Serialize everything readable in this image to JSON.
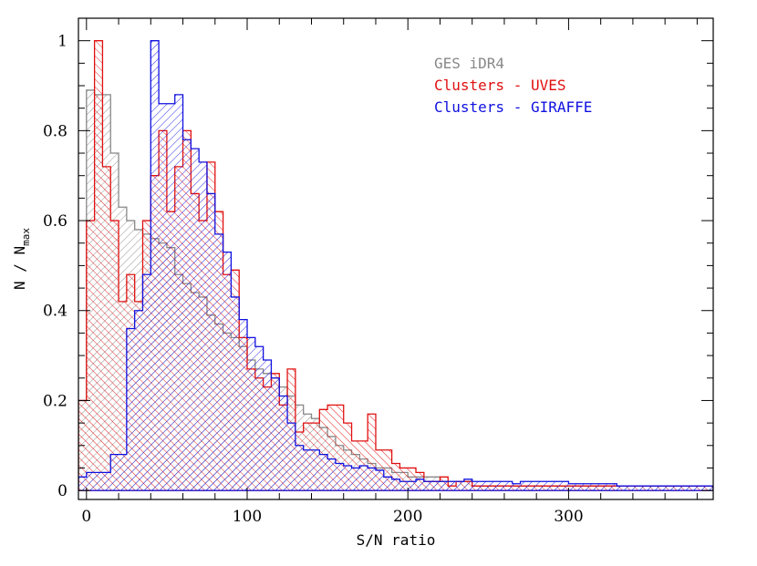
{
  "chart_data": {
    "type": "histogram",
    "xlabel": "S/N ratio",
    "ylabel_main": "N / N",
    "ylabel_sub": "max",
    "xlim": [
      -5,
      390
    ],
    "ylim": [
      -0.02,
      1.05
    ],
    "x_ticks": [
      0,
      100,
      200,
      300
    ],
    "y_ticks": [
      0,
      0.2,
      0.4,
      0.6,
      0.8,
      1
    ],
    "y_tick_labels": [
      "0",
      "0.2",
      "0.4",
      "0.6",
      "0.8",
      "1"
    ],
    "bin_edges_start": -5,
    "bin_width": 5,
    "legend_position": "top-right",
    "series": [
      {
        "name": "GES iDR4",
        "color": "#888888",
        "hatch": "single",
        "values": [
          0.2,
          0.89,
          0.88,
          0.88,
          0.75,
          0.63,
          0.6,
          0.58,
          0.57,
          0.56,
          0.55,
          0.54,
          0.48,
          0.46,
          0.44,
          0.43,
          0.39,
          0.37,
          0.35,
          0.34,
          0.32,
          0.29,
          0.27,
          0.26,
          0.25,
          0.23,
          0.21,
          0.19,
          0.17,
          0.16,
          0.14,
          0.12,
          0.1,
          0.09,
          0.08,
          0.07,
          0.06,
          0.05,
          0.05,
          0.04,
          0.04,
          0.03,
          0.03,
          0.03,
          0.03,
          0.02,
          0.02,
          0.02,
          0.02,
          0.01,
          0.01,
          0.01,
          0.01,
          0.01,
          0.01,
          0.01,
          0.01,
          0.01,
          0.01,
          0.01,
          0.01,
          0.01,
          0.01,
          0.01,
          0.01,
          0.01,
          0.01,
          0.01,
          0.01,
          0.01,
          0.01,
          0.01,
          0.01,
          0.01,
          0.01,
          0.01,
          0.01,
          0.01,
          0.01
        ]
      },
      {
        "name": "Clusters - UVES",
        "color": "#e01010",
        "hatch": "single",
        "values": [
          0.2,
          0.6,
          1.0,
          0.72,
          0.6,
          0.42,
          0.48,
          0.42,
          0.6,
          0.7,
          0.8,
          0.62,
          0.72,
          0.8,
          0.66,
          0.6,
          0.73,
          0.62,
          0.48,
          0.49,
          0.34,
          0.27,
          0.25,
          0.23,
          0.26,
          0.19,
          0.27,
          0.13,
          0.15,
          0.15,
          0.18,
          0.19,
          0.19,
          0.15,
          0.11,
          0.11,
          0.17,
          0.09,
          0.09,
          0.06,
          0.05,
          0.05,
          0.04,
          0.02,
          0.02,
          0.03,
          0.01,
          0.02,
          0.02,
          0.01,
          0.01,
          0.01,
          0.01,
          0.01,
          0.01,
          0.01,
          0.01,
          0.01,
          0.01,
          0.01,
          0.01,
          0.01,
          0.01,
          0.01,
          0.01,
          0.01,
          0.01,
          0.01,
          0.01,
          0.01,
          0.01,
          0.01,
          0.01,
          0.01,
          0.01,
          0.01,
          0.01,
          0.01,
          0.01
        ]
      },
      {
        "name": "Clusters - GIRAFFE",
        "color": "#1010e0",
        "hatch": "single",
        "values": [
          0.03,
          0.04,
          0.04,
          0.04,
          0.08,
          0.08,
          0.36,
          0.4,
          0.48,
          1.0,
          0.86,
          0.86,
          0.88,
          0.78,
          0.76,
          0.73,
          0.66,
          0.57,
          0.53,
          0.43,
          0.38,
          0.34,
          0.32,
          0.29,
          0.25,
          0.21,
          0.15,
          0.1,
          0.09,
          0.09,
          0.08,
          0.07,
          0.06,
          0.055,
          0.05,
          0.055,
          0.05,
          0.045,
          0.03,
          0.025,
          0.02,
          0.02,
          0.025,
          0.02,
          0.02,
          0.02,
          0.02,
          0.02,
          0.025,
          0.02,
          0.02,
          0.02,
          0.02,
          0.02,
          0.015,
          0.02,
          0.02,
          0.02,
          0.02,
          0.02,
          0.02,
          0.015,
          0.015,
          0.015,
          0.015,
          0.015,
          0.015,
          0.01,
          0.01,
          0.01,
          0.01,
          0.01,
          0.01,
          0.01,
          0.01,
          0.01,
          0.01,
          0.01,
          0.01
        ]
      }
    ]
  }
}
